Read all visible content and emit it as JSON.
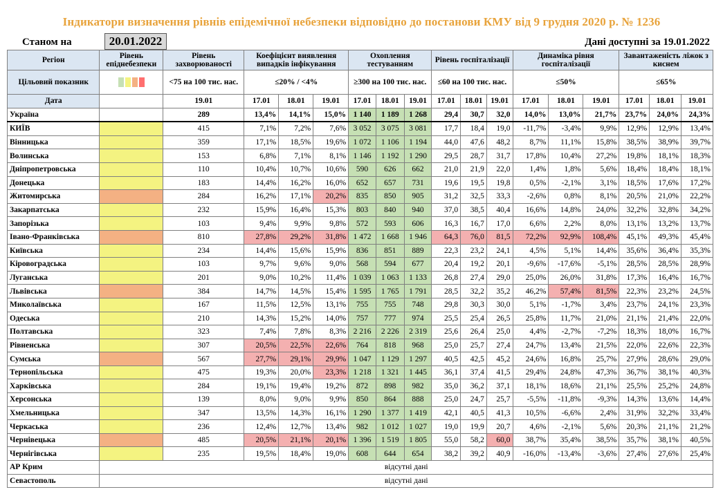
{
  "title": "Індикатори визначення рівнів епідемічної небезпеки відповідно до постанови КМУ від 9 грудня 2020 р. № 1236",
  "as_of_label": "Станом на",
  "as_of_date": "20.01.2022",
  "data_available": "Дані доступні за 19.01.2022",
  "headers": {
    "region": "Регіон",
    "level": "Рівень епіднебезпеки",
    "incidence": "Рівень захворюваності",
    "detection": "Коефіцієнт виявлення випадків інфікування",
    "testing": "Охоплення тестуванням",
    "hosp": "Рівень госпіталізації",
    "hosp_dyn": "Динаміка рівня госпіталізації",
    "oxygen": "Завантаженість ліжок з киснем"
  },
  "target_row": {
    "label": "Цільовий показник",
    "incidence": "<75 на 100 тис. нас.",
    "detection": "≤20% / <4%",
    "testing": "≥300 на 100 тис. нас.",
    "hosp": "≤60 на 100 тис. нас.",
    "hosp_dyn": "≤50%",
    "oxygen": "≤65%",
    "swatches": [
      "#c6e0b4",
      "#f4f381",
      "#f4b183",
      "#ff6f6f"
    ]
  },
  "date_row": {
    "label": "Дата",
    "incidence": "19.01",
    "d1": "17.01",
    "d2": "18.01",
    "d3": "19.01"
  },
  "rows": [
    {
      "region": "Україна",
      "level": "",
      "inc": "289",
      "det": [
        "13,4%",
        "14,1%",
        "15,0%"
      ],
      "test": [
        "1 140",
        "1 189",
        "1 268"
      ],
      "hosp": [
        "29,4",
        "30,7",
        "32,0"
      ],
      "dyn": [
        "14,0%",
        "13,0%",
        "21,7%"
      ],
      "oxy": [
        "23,7%",
        "24,0%",
        "24,3%"
      ]
    },
    {
      "region": "КИЇВ",
      "level": "yellow",
      "inc": "415",
      "det": [
        "7,1%",
        "7,2%",
        "7,6%"
      ],
      "test": [
        "3 052",
        "3 075",
        "3 081"
      ],
      "hosp": [
        "17,7",
        "18,4",
        "19,0"
      ],
      "dyn": [
        "-11,7%",
        "-3,4%",
        "9,9%"
      ],
      "oxy": [
        "12,9%",
        "12,9%",
        "13,4%"
      ]
    },
    {
      "region": "Вінницька",
      "level": "yellow",
      "inc": "359",
      "det": [
        "17,1%",
        "18,5%",
        "19,6%"
      ],
      "test": [
        "1 072",
        "1 106",
        "1 194"
      ],
      "hosp": [
        "44,0",
        "47,6",
        "48,2"
      ],
      "dyn": [
        "8,7%",
        "11,1%",
        "15,8%"
      ],
      "oxy": [
        "38,5%",
        "38,9%",
        "39,7%"
      ]
    },
    {
      "region": "Волинська",
      "level": "yellow",
      "inc": "153",
      "det": [
        "6,8%",
        "7,1%",
        "8,1%"
      ],
      "test": [
        "1 146",
        "1 192",
        "1 290"
      ],
      "hosp": [
        "29,5",
        "28,7",
        "31,7"
      ],
      "dyn": [
        "17,8%",
        "10,4%",
        "27,2%"
      ],
      "oxy": [
        "19,8%",
        "18,1%",
        "18,3%"
      ]
    },
    {
      "region": "Дніпропетровська",
      "level": "yellow",
      "inc": "110",
      "det": [
        "10,4%",
        "10,7%",
        "10,6%"
      ],
      "test": [
        "590",
        "626",
        "662"
      ],
      "hosp": [
        "21,0",
        "21,9",
        "22,0"
      ],
      "dyn": [
        "1,4%",
        "1,8%",
        "5,6%"
      ],
      "oxy": [
        "18,4%",
        "18,4%",
        "18,1%"
      ]
    },
    {
      "region": "Донецька",
      "level": "yellow",
      "inc": "183",
      "det": [
        "14,4%",
        "16,2%",
        "16,0%"
      ],
      "test": [
        "652",
        "657",
        "731"
      ],
      "hosp": [
        "19,6",
        "19,5",
        "19,8"
      ],
      "dyn": [
        "0,5%",
        "-2,1%",
        "3,1%"
      ],
      "oxy": [
        "18,5%",
        "17,6%",
        "17,2%"
      ]
    },
    {
      "region": "Житомирська",
      "level": "orange",
      "inc": "284",
      "det": [
        "16,2%",
        "17,1%",
        "20,2%"
      ],
      "test": [
        "835",
        "850",
        "905"
      ],
      "hosp": [
        "31,2",
        "32,5",
        "33,3"
      ],
      "dyn": [
        "-2,6%",
        "0,8%",
        "8,1%"
      ],
      "oxy": [
        "20,5%",
        "21,0%",
        "22,2%"
      ],
      "red_det": [
        2
      ]
    },
    {
      "region": "Закарпатська",
      "level": "yellow",
      "inc": "232",
      "det": [
        "15,9%",
        "16,4%",
        "15,3%"
      ],
      "test": [
        "803",
        "840",
        "940"
      ],
      "hosp": [
        "37,0",
        "38,5",
        "40,4"
      ],
      "dyn": [
        "16,6%",
        "14,8%",
        "24,0%"
      ],
      "oxy": [
        "32,2%",
        "32,8%",
        "34,2%"
      ]
    },
    {
      "region": "Запорізька",
      "level": "yellow",
      "inc": "103",
      "det": [
        "9,4%",
        "9,9%",
        "9,8%"
      ],
      "test": [
        "572",
        "593",
        "606"
      ],
      "hosp": [
        "16,3",
        "16,7",
        "17,0"
      ],
      "dyn": [
        "6,6%",
        "2,2%",
        "8,0%"
      ],
      "oxy": [
        "13,1%",
        "13,2%",
        "13,7%"
      ]
    },
    {
      "region": "Івано-Франківська",
      "level": "orange",
      "inc": "810",
      "det": [
        "27,8%",
        "29,2%",
        "31,8%"
      ],
      "test": [
        "1 472",
        "1 668",
        "1 946"
      ],
      "hosp": [
        "64,3",
        "76,0",
        "81,5"
      ],
      "dyn": [
        "72,2%",
        "92,9%",
        "108,4%"
      ],
      "oxy": [
        "45,1%",
        "49,3%",
        "45,4%"
      ],
      "red_det": [
        0,
        1,
        2
      ],
      "red_hosp": [
        0,
        1,
        2
      ],
      "red_dyn": [
        0,
        1,
        2
      ]
    },
    {
      "region": "Київська",
      "level": "yellow",
      "inc": "234",
      "det": [
        "14,4%",
        "15,6%",
        "15,9%"
      ],
      "test": [
        "836",
        "851",
        "889"
      ],
      "hosp": [
        "22,3",
        "23,2",
        "24,1"
      ],
      "dyn": [
        "4,5%",
        "5,1%",
        "14,4%"
      ],
      "oxy": [
        "35,6%",
        "36,4%",
        "35,3%"
      ]
    },
    {
      "region": "Кіровоградська",
      "level": "yellow",
      "inc": "103",
      "det": [
        "9,7%",
        "9,6%",
        "9,0%"
      ],
      "test": [
        "568",
        "594",
        "677"
      ],
      "hosp": [
        "20,4",
        "19,2",
        "20,1"
      ],
      "dyn": [
        "-9,6%",
        "-17,6%",
        "-5,1%"
      ],
      "oxy": [
        "28,5%",
        "28,5%",
        "28,9%"
      ]
    },
    {
      "region": "Луганська",
      "level": "yellow",
      "inc": "201",
      "det": [
        "9,0%",
        "10,2%",
        "11,4%"
      ],
      "test": [
        "1 039",
        "1 063",
        "1 133"
      ],
      "hosp": [
        "26,8",
        "27,4",
        "29,0"
      ],
      "dyn": [
        "25,0%",
        "26,0%",
        "31,8%"
      ],
      "oxy": [
        "17,3%",
        "16,4%",
        "16,7%"
      ]
    },
    {
      "region": "Львівська",
      "level": "orange",
      "inc": "384",
      "det": [
        "14,7%",
        "14,5%",
        "15,4%"
      ],
      "test": [
        "1 595",
        "1 765",
        "1 791"
      ],
      "hosp": [
        "28,5",
        "32,2",
        "35,2"
      ],
      "dyn": [
        "46,2%",
        "57,4%",
        "81,5%"
      ],
      "oxy": [
        "22,3%",
        "23,2%",
        "24,5%"
      ],
      "red_dyn": [
        1,
        2
      ]
    },
    {
      "region": "Миколаївська",
      "level": "yellow",
      "inc": "167",
      "det": [
        "11,5%",
        "12,5%",
        "13,1%"
      ],
      "test": [
        "755",
        "755",
        "748"
      ],
      "hosp": [
        "29,8",
        "30,3",
        "30,0"
      ],
      "dyn": [
        "5,1%",
        "-1,7%",
        "3,4%"
      ],
      "oxy": [
        "23,7%",
        "24,1%",
        "23,3%"
      ]
    },
    {
      "region": "Одеська",
      "level": "yellow",
      "inc": "210",
      "det": [
        "14,3%",
        "15,2%",
        "14,0%"
      ],
      "test": [
        "757",
        "777",
        "974"
      ],
      "hosp": [
        "25,5",
        "25,4",
        "26,5"
      ],
      "dyn": [
        "25,8%",
        "11,7%",
        "21,0%"
      ],
      "oxy": [
        "21,1%",
        "21,4%",
        "22,0%"
      ]
    },
    {
      "region": "Полтавська",
      "level": "yellow",
      "inc": "323",
      "det": [
        "7,4%",
        "7,8%",
        "8,3%"
      ],
      "test": [
        "2 216",
        "2 226",
        "2 319"
      ],
      "hosp": [
        "25,6",
        "26,4",
        "25,0"
      ],
      "dyn": [
        "4,4%",
        "-2,7%",
        "-7,2%"
      ],
      "oxy": [
        "18,3%",
        "18,0%",
        "16,7%"
      ]
    },
    {
      "region": "Рівненська",
      "level": "yellow",
      "inc": "307",
      "det": [
        "20,5%",
        "22,5%",
        "22,6%"
      ],
      "test": [
        "764",
        "818",
        "968"
      ],
      "hosp": [
        "25,0",
        "25,7",
        "27,4"
      ],
      "dyn": [
        "24,7%",
        "13,4%",
        "21,5%"
      ],
      "oxy": [
        "22,0%",
        "22,6%",
        "22,3%"
      ],
      "red_det": [
        0,
        1,
        2
      ]
    },
    {
      "region": "Сумська",
      "level": "orange",
      "inc": "567",
      "det": [
        "27,7%",
        "29,1%",
        "29,9%"
      ],
      "test": [
        "1 047",
        "1 129",
        "1 297"
      ],
      "hosp": [
        "40,5",
        "42,5",
        "45,2"
      ],
      "dyn": [
        "24,6%",
        "16,8%",
        "25,7%"
      ],
      "oxy": [
        "27,9%",
        "28,6%",
        "29,0%"
      ],
      "red_det": [
        0,
        1,
        2
      ]
    },
    {
      "region": "Тернопільська",
      "level": "yellow",
      "inc": "475",
      "det": [
        "19,3%",
        "20,0%",
        "23,3%"
      ],
      "test": [
        "1 218",
        "1 321",
        "1 445"
      ],
      "hosp": [
        "36,1",
        "37,4",
        "41,5"
      ],
      "dyn": [
        "29,4%",
        "24,8%",
        "47,3%"
      ],
      "oxy": [
        "36,7%",
        "38,1%",
        "40,3%"
      ],
      "red_det": [
        2
      ]
    },
    {
      "region": "Харківська",
      "level": "yellow",
      "inc": "284",
      "det": [
        "19,1%",
        "19,4%",
        "19,2%"
      ],
      "test": [
        "872",
        "898",
        "982"
      ],
      "hosp": [
        "35,0",
        "36,2",
        "37,1"
      ],
      "dyn": [
        "18,1%",
        "18,6%",
        "21,1%"
      ],
      "oxy": [
        "25,5%",
        "25,2%",
        "24,8%"
      ]
    },
    {
      "region": "Херсонська",
      "level": "yellow",
      "inc": "139",
      "det": [
        "8,0%",
        "9,0%",
        "9,9%"
      ],
      "test": [
        "850",
        "864",
        "888"
      ],
      "hosp": [
        "25,0",
        "24,7",
        "25,7"
      ],
      "dyn": [
        "-5,5%",
        "-11,8%",
        "-9,3%"
      ],
      "oxy": [
        "14,3%",
        "13,6%",
        "14,4%"
      ]
    },
    {
      "region": "Хмельницька",
      "level": "yellow",
      "inc": "347",
      "det": [
        "13,5%",
        "14,3%",
        "16,1%"
      ],
      "test": [
        "1 290",
        "1 377",
        "1 419"
      ],
      "hosp": [
        "42,1",
        "40,5",
        "41,3"
      ],
      "dyn": [
        "10,5%",
        "-6,6%",
        "2,4%"
      ],
      "oxy": [
        "31,9%",
        "32,2%",
        "33,4%"
      ]
    },
    {
      "region": "Черкаська",
      "level": "yellow",
      "inc": "236",
      "det": [
        "12,4%",
        "12,7%",
        "13,4%"
      ],
      "test": [
        "982",
        "1 012",
        "1 027"
      ],
      "hosp": [
        "19,0",
        "19,9",
        "20,7"
      ],
      "dyn": [
        "4,6%",
        "-2,1%",
        "5,6%"
      ],
      "oxy": [
        "20,3%",
        "21,1%",
        "21,2%"
      ]
    },
    {
      "region": "Чернівецька",
      "level": "orange",
      "inc": "485",
      "det": [
        "20,5%",
        "21,1%",
        "20,1%"
      ],
      "test": [
        "1 396",
        "1 519",
        "1 805"
      ],
      "hosp": [
        "55,0",
        "58,2",
        "60,0"
      ],
      "dyn": [
        "38,7%",
        "35,4%",
        "38,5%"
      ],
      "oxy": [
        "35,7%",
        "38,1%",
        "40,5%"
      ],
      "red_det": [
        0,
        1,
        2
      ],
      "red_hosp": [
        2
      ]
    },
    {
      "region": "Чернігівська",
      "level": "yellow",
      "inc": "235",
      "det": [
        "19,5%",
        "18,4%",
        "19,0%"
      ],
      "test": [
        "608",
        "644",
        "654"
      ],
      "hosp": [
        "38,2",
        "39,2",
        "40,9"
      ],
      "dyn": [
        "-16,0%",
        "-13,4%",
        "-3,6%"
      ],
      "oxy": [
        "27,4%",
        "27,6%",
        "25,4%"
      ]
    }
  ],
  "missing_rows": [
    {
      "region": "АР Крим",
      "note": "відсутні дані"
    },
    {
      "region": "Севастополь",
      "note": "відсутні дані"
    }
  ]
}
